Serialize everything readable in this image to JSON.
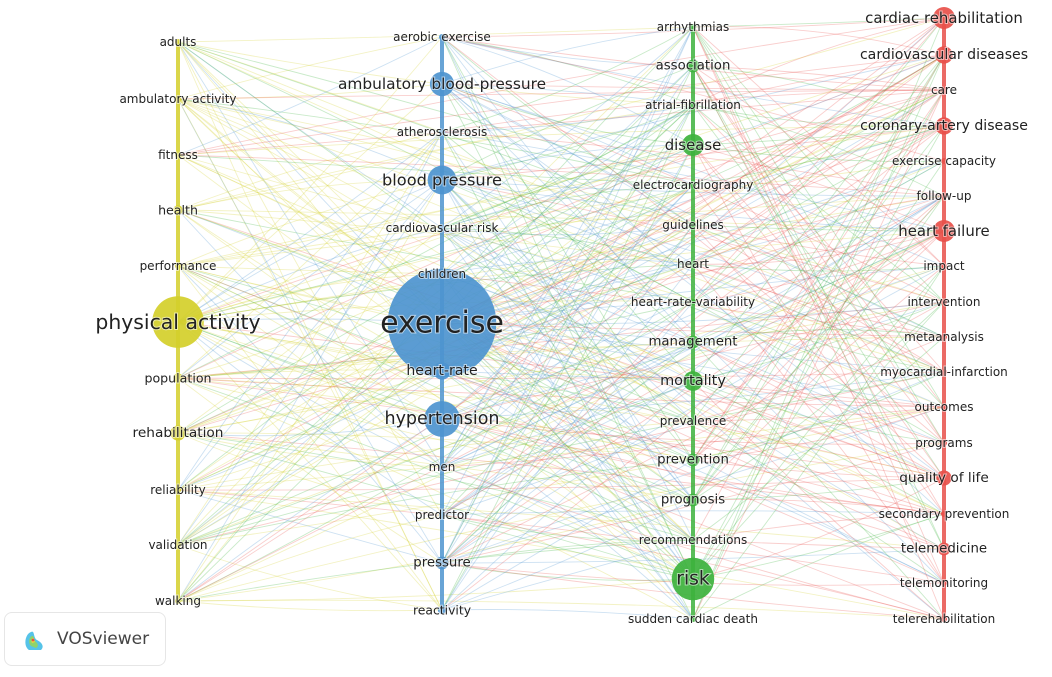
{
  "clusters": [
    {
      "name": "yellow",
      "color": "#d4cf2a",
      "items": [
        {
          "label": "adults",
          "weight": 1
        },
        {
          "label": "ambulatory activity",
          "weight": 1
        },
        {
          "label": "fitness",
          "weight": 1
        },
        {
          "label": "health",
          "weight": 1.3
        },
        {
          "label": "performance",
          "weight": 1
        },
        {
          "label": "physical activity",
          "weight": 5
        },
        {
          "label": "population",
          "weight": 1.3
        },
        {
          "label": "rehabilitation",
          "weight": 1.8
        },
        {
          "label": "reliability",
          "weight": 1
        },
        {
          "label": "validation",
          "weight": 1
        },
        {
          "label": "walking",
          "weight": 1
        }
      ]
    },
    {
      "name": "blue",
      "color": "#4d94cf",
      "items": [
        {
          "label": "aerobic exercise",
          "weight": 1
        },
        {
          "label": "ambulatory blood-pressure",
          "weight": 2.6
        },
        {
          "label": "atherosclerosis",
          "weight": 1
        },
        {
          "label": "blood pressure",
          "weight": 3
        },
        {
          "label": "cardiovascular risk",
          "weight": 1
        },
        {
          "label": "children",
          "weight": 1
        },
        {
          "label": "exercise",
          "weight": 10
        },
        {
          "label": "heart-rate",
          "weight": 2
        },
        {
          "label": "hypertension",
          "weight": 3.6
        },
        {
          "label": "men",
          "weight": 1
        },
        {
          "label": "predictor",
          "weight": 1
        },
        {
          "label": "pressure",
          "weight": 1.6
        },
        {
          "label": "reactivity",
          "weight": 1.2
        }
      ]
    },
    {
      "name": "green",
      "color": "#3db23d",
      "items": [
        {
          "label": "arrhythmias",
          "weight": 1
        },
        {
          "label": "association",
          "weight": 1.6
        },
        {
          "label": "atrial-fibrillation",
          "weight": 1
        },
        {
          "label": "disease",
          "weight": 2.4
        },
        {
          "label": "electrocardiography",
          "weight": 1
        },
        {
          "label": "guidelines",
          "weight": 1
        },
        {
          "label": "heart",
          "weight": 1
        },
        {
          "label": "heart-rate-variability",
          "weight": 1
        },
        {
          "label": "management",
          "weight": 1.6
        },
        {
          "label": "mortality",
          "weight": 2.2
        },
        {
          "label": "prevalence",
          "weight": 1
        },
        {
          "label": "prevention",
          "weight": 1.6
        },
        {
          "label": "prognosis",
          "weight": 1.6
        },
        {
          "label": "recommendations",
          "weight": 1
        },
        {
          "label": "risk",
          "weight": 4.2
        },
        {
          "label": "sudden cardiac death",
          "weight": 1
        }
      ]
    },
    {
      "name": "red",
      "color": "#e8504a",
      "items": [
        {
          "label": "cardiac rehabilitation",
          "weight": 2.4
        },
        {
          "label": "cardiovascular diseases",
          "weight": 2
        },
        {
          "label": "care",
          "weight": 1
        },
        {
          "label": "coronary-artery disease",
          "weight": 2
        },
        {
          "label": "exercise capacity",
          "weight": 1
        },
        {
          "label": "follow-up",
          "weight": 1
        },
        {
          "label": "heart failure",
          "weight": 2.4
        },
        {
          "label": "impact",
          "weight": 1
        },
        {
          "label": "intervention",
          "weight": 1
        },
        {
          "label": "metaanalysis",
          "weight": 1
        },
        {
          "label": "myocardial-infarction",
          "weight": 1
        },
        {
          "label": "outcomes",
          "weight": 1
        },
        {
          "label": "programs",
          "weight": 1
        },
        {
          "label": "quality of life",
          "weight": 1.8
        },
        {
          "label": "secondary prevention",
          "weight": 1
        },
        {
          "label": "telemedicine",
          "weight": 1.6
        },
        {
          "label": "telemonitoring",
          "weight": 1
        },
        {
          "label": "telerehabilitation",
          "weight": 1
        }
      ]
    }
  ],
  "branding": {
    "name": "VOSviewer"
  }
}
